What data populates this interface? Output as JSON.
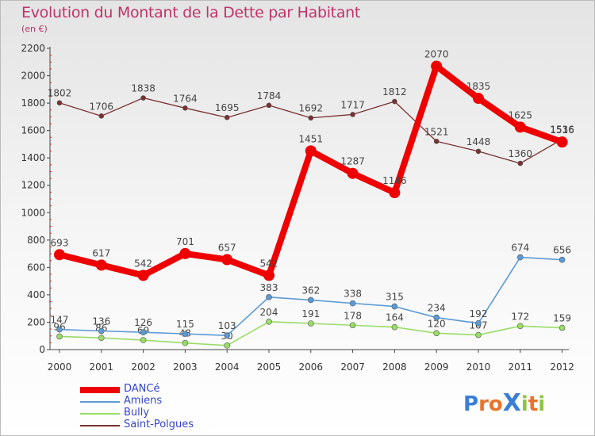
{
  "title": "Evolution du Montant de la Dette par Habitant",
  "subtitle": "(en €)",
  "logo": {
    "text": "ProXiti",
    "colors": [
      "#3a7fd5",
      "#e8742a",
      "#e8742a",
      "#3a7fd5",
      "#8cc63f",
      "#e8742a",
      "#8cc63f"
    ]
  },
  "chart_data": {
    "type": "line",
    "x": [
      "2000",
      "2001",
      "2002",
      "2003",
      "2004",
      "2005",
      "2006",
      "2007",
      "2008",
      "2009",
      "2010",
      "2011",
      "2012"
    ],
    "ylim": [
      0,
      2200
    ],
    "yticks": [
      0,
      200,
      400,
      600,
      800,
      1000,
      1200,
      1400,
      1600,
      1800,
      2000,
      2200
    ],
    "grid": false,
    "legend_position": "bottom-left",
    "series": [
      {
        "name": "Saint-Polgues",
        "color": "#7b3030",
        "values": [
          1802,
          1706,
          1838,
          1764,
          1695,
          1784,
          1692,
          1717,
          1812,
          1521,
          1448,
          1360,
          1536
        ]
      },
      {
        "name": "Bully",
        "color": "#99dd66",
        "values": [
          96,
          86,
          69,
          48,
          30,
          204,
          191,
          178,
          164,
          120,
          107,
          172,
          159
        ]
      },
      {
        "name": "Amiens",
        "color": "#5b9bd5",
        "values": [
          147,
          136,
          126,
          115,
          103,
          383,
          362,
          338,
          315,
          234,
          192,
          674,
          656
        ]
      },
      {
        "name": "DANCé",
        "color": "#ee0000",
        "values": [
          693,
          617,
          542,
          701,
          657,
          542,
          1451,
          1287,
          1146,
          2070,
          1835,
          1625,
          1516
        ]
      }
    ],
    "legend_order": [
      "DANCé",
      "Amiens",
      "Bully",
      "Saint-Polgues"
    ]
  }
}
